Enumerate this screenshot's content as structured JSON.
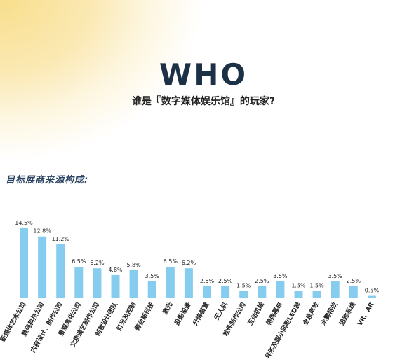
{
  "header": {
    "headline": "WHO",
    "subtitle": "谁是『数字媒体娱乐馆』的玩家?"
  },
  "section_label": "目标展商来源构成:",
  "colors": {
    "bar": "#86ccef",
    "headline": "#1d3146",
    "glow": "#f8de8c"
  },
  "chart_data": {
    "type": "bar",
    "title": "",
    "xlabel": "",
    "ylabel": "",
    "ylim": [
      0,
      15
    ],
    "grid": false,
    "categories": [
      "新媒体艺术公司",
      "数码科技公司",
      "内容设计、制作公司",
      "景观亮化公司",
      "文旅演艺制作公司",
      "创意设计团队",
      "灯光及控制",
      "舞台新科技",
      "激光",
      "投影设备",
      "升降装置",
      "无人机",
      "软件制作公司",
      "互动机械",
      "特殊幕布",
      "异形及超小间距LED屏",
      "全息声效",
      "水雾特效",
      "追踪系统",
      "VR、AR"
    ],
    "values": [
      14.5,
      12.8,
      11.2,
      6.5,
      6.2,
      4.8,
      5.8,
      3.5,
      6.5,
      6.2,
      2.5,
      2.5,
      1.5,
      2.5,
      3.5,
      1.5,
      1.5,
      3.5,
      2.5,
      0.5
    ],
    "labels": [
      "14.5%",
      "12.8%",
      "11.2%",
      "6.5%",
      "6.2%",
      "4.8%",
      "5.8%",
      "3.5%",
      "6.5%",
      "6.2%",
      "2.5%",
      "2.5%",
      "1.5%",
      "2.5%",
      "3.5%",
      "1.5%",
      "1.5%",
      "3.5%",
      "2.5%",
      "0.5%"
    ]
  }
}
